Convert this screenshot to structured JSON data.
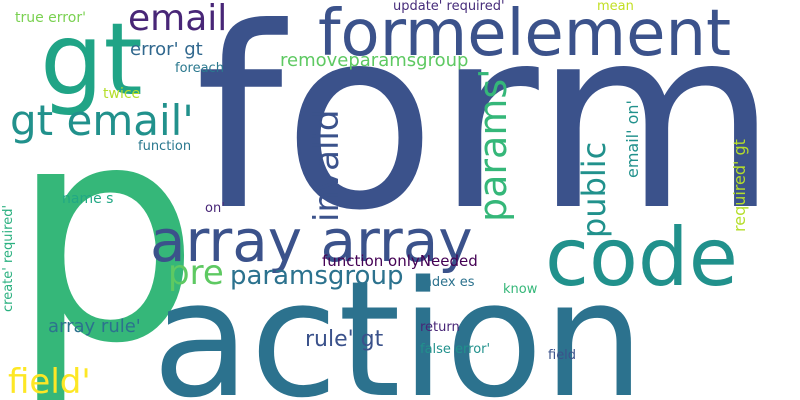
{
  "words": [
    {
      "key": "form",
      "text": "form",
      "color": "#3b528b",
      "vertical": false
    },
    {
      "key": "p",
      "text": "p",
      "color": "#35b779",
      "vertical": false
    },
    {
      "key": "action",
      "text": "action",
      "color": "#2c728e",
      "vertical": false
    },
    {
      "key": "formelement",
      "text": "formelement",
      "color": "#3b528b",
      "vertical": false
    },
    {
      "key": "code",
      "text": "code",
      "color": "#21918c",
      "vertical": false
    },
    {
      "key": "array_array",
      "text": "array array",
      "color": "#3b528b",
      "vertical": false
    },
    {
      "key": "gt",
      "text": "gt",
      "color": "#20a486",
      "vertical": false
    },
    {
      "key": "gt_email",
      "text": "gt email'",
      "color": "#21918c",
      "vertical": false
    },
    {
      "key": "email",
      "text": "email",
      "color": "#482677",
      "vertical": false
    },
    {
      "key": "params",
      "text": "params'",
      "color": "#35b779",
      "vertical": true
    },
    {
      "key": "invalid",
      "text": "invalid",
      "color": "#3b528b",
      "vertical": true
    },
    {
      "key": "public",
      "text": "public",
      "color": "#21918c",
      "vertical": true
    },
    {
      "key": "pre",
      "text": "pre",
      "color": "#5ec962",
      "vertical": false
    },
    {
      "key": "paramsgroup",
      "text": "paramsgroup",
      "color": "#2c728e",
      "vertical": false
    },
    {
      "key": "field_big",
      "text": "field'",
      "color": "#fde725",
      "vertical": false
    },
    {
      "key": "removeparamsgroup",
      "text": "removeparamsgroup",
      "color": "#5ec962",
      "vertical": false
    },
    {
      "key": "error_gt",
      "text": "error' gt",
      "color": "#31688e",
      "vertical": false
    },
    {
      "key": "email_on",
      "text": "email' on'",
      "color": "#21918c",
      "vertical": true
    },
    {
      "key": "required_gt",
      "text": "required' gt",
      "color": "#b5de2b",
      "vertical": true
    },
    {
      "key": "rule_gt",
      "text": "rule' gt",
      "color": "#3b528b",
      "vertical": false
    },
    {
      "key": "array_rule",
      "text": "array rule'",
      "color": "#2c728e",
      "vertical": false
    },
    {
      "key": "function_onlyneeded",
      "text": "function onlyNeeded",
      "color": "#440154",
      "vertical": false
    },
    {
      "key": "true_error",
      "text": "true error'",
      "color": "#7ad151",
      "vertical": false
    },
    {
      "key": "update_required",
      "text": "update' required'",
      "color": "#472d7b",
      "vertical": false
    },
    {
      "key": "mean",
      "text": "mean",
      "color": "#c2df23",
      "vertical": false
    },
    {
      "key": "foreach",
      "text": "foreach",
      "color": "#2a788e",
      "vertical": false
    },
    {
      "key": "twice",
      "text": "twice",
      "color": "#b5de2b",
      "vertical": false
    },
    {
      "key": "function",
      "text": "function",
      "color": "#2a788e",
      "vertical": false
    },
    {
      "key": "name_s",
      "text": "name s",
      "color": "#22a884",
      "vertical": false
    },
    {
      "key": "on",
      "text": "on'",
      "color": "#482677",
      "vertical": false
    },
    {
      "key": "create_required",
      "text": "create' required'",
      "color": "#2ab07f",
      "vertical": true
    },
    {
      "key": "index_es",
      "text": "index es",
      "color": "#2c728e",
      "vertical": false
    },
    {
      "key": "know",
      "text": "know",
      "color": "#35b779",
      "vertical": false
    },
    {
      "key": "return",
      "text": "return",
      "color": "#482677",
      "vertical": false
    },
    {
      "key": "false_error",
      "text": "false error'",
      "color": "#21918c",
      "vertical": false
    },
    {
      "key": "field_small",
      "text": "field",
      "color": "#3b528b",
      "vertical": false
    }
  ]
}
